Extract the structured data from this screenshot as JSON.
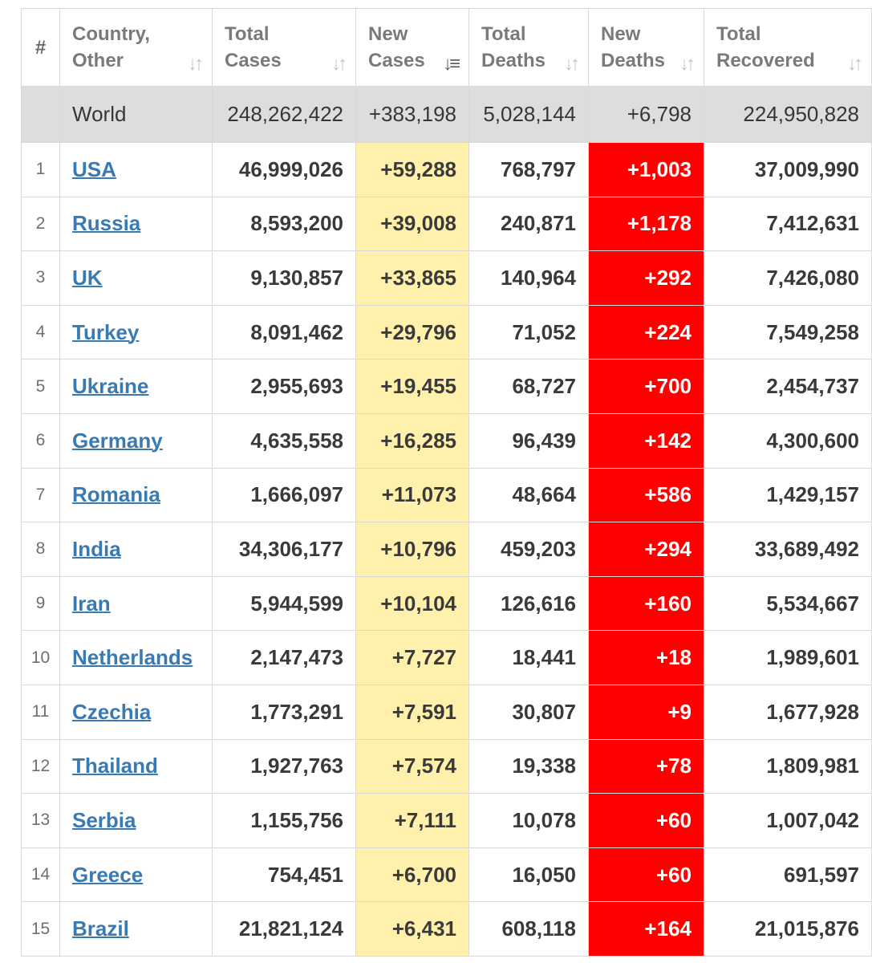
{
  "headers": {
    "num": "#",
    "country": [
      "Country,",
      "Other"
    ],
    "total_cases": [
      "Total",
      "Cases"
    ],
    "new_cases": [
      "New",
      "Cases"
    ],
    "total_deaths": [
      "Total",
      "Deaths"
    ],
    "new_deaths": [
      "New",
      "Deaths"
    ],
    "total_recovered": [
      "Total",
      "Recovered"
    ]
  },
  "world": {
    "name": "World",
    "total_cases": "248,262,422",
    "new_cases": "+383,198",
    "total_deaths": "5,028,144",
    "new_deaths": "+6,798",
    "total_recovered": "224,950,828"
  },
  "rows": [
    {
      "num": "1",
      "country": "USA",
      "total_cases": "46,999,026",
      "new_cases": "+59,288",
      "total_deaths": "768,797",
      "new_deaths": "+1,003",
      "total_recovered": "37,009,990"
    },
    {
      "num": "2",
      "country": "Russia",
      "total_cases": "8,593,200",
      "new_cases": "+39,008",
      "total_deaths": "240,871",
      "new_deaths": "+1,178",
      "total_recovered": "7,412,631"
    },
    {
      "num": "3",
      "country": "UK",
      "total_cases": "9,130,857",
      "new_cases": "+33,865",
      "total_deaths": "140,964",
      "new_deaths": "+292",
      "total_recovered": "7,426,080"
    },
    {
      "num": "4",
      "country": "Turkey",
      "total_cases": "8,091,462",
      "new_cases": "+29,796",
      "total_deaths": "71,052",
      "new_deaths": "+224",
      "total_recovered": "7,549,258"
    },
    {
      "num": "5",
      "country": "Ukraine",
      "total_cases": "2,955,693",
      "new_cases": "+19,455",
      "total_deaths": "68,727",
      "new_deaths": "+700",
      "total_recovered": "2,454,737"
    },
    {
      "num": "6",
      "country": "Germany",
      "total_cases": "4,635,558",
      "new_cases": "+16,285",
      "total_deaths": "96,439",
      "new_deaths": "+142",
      "total_recovered": "4,300,600"
    },
    {
      "num": "7",
      "country": "Romania",
      "total_cases": "1,666,097",
      "new_cases": "+11,073",
      "total_deaths": "48,664",
      "new_deaths": "+586",
      "total_recovered": "1,429,157"
    },
    {
      "num": "8",
      "country": "India",
      "total_cases": "34,306,177",
      "new_cases": "+10,796",
      "total_deaths": "459,203",
      "new_deaths": "+294",
      "total_recovered": "33,689,492"
    },
    {
      "num": "9",
      "country": "Iran",
      "total_cases": "5,944,599",
      "new_cases": "+10,104",
      "total_deaths": "126,616",
      "new_deaths": "+160",
      "total_recovered": "5,534,667"
    },
    {
      "num": "10",
      "country": "Netherlands",
      "total_cases": "2,147,473",
      "new_cases": "+7,727",
      "total_deaths": "18,441",
      "new_deaths": "+18",
      "total_recovered": "1,989,601"
    },
    {
      "num": "11",
      "country": "Czechia",
      "total_cases": "1,773,291",
      "new_cases": "+7,591",
      "total_deaths": "30,807",
      "new_deaths": "+9",
      "total_recovered": "1,677,928"
    },
    {
      "num": "12",
      "country": "Thailand",
      "total_cases": "1,927,763",
      "new_cases": "+7,574",
      "total_deaths": "19,338",
      "new_deaths": "+78",
      "total_recovered": "1,809,981"
    },
    {
      "num": "13",
      "country": "Serbia",
      "total_cases": "1,155,756",
      "new_cases": "+7,111",
      "total_deaths": "10,078",
      "new_deaths": "+60",
      "total_recovered": "1,007,042"
    },
    {
      "num": "14",
      "country": "Greece",
      "total_cases": "754,451",
      "new_cases": "+6,700",
      "total_deaths": "16,050",
      "new_deaths": "+60",
      "total_recovered": "691,597"
    },
    {
      "num": "15",
      "country": "Brazil",
      "total_cases": "21,821,124",
      "new_cases": "+6,431",
      "total_deaths": "608,118",
      "new_deaths": "+164",
      "total_recovered": "21,015,876"
    }
  ],
  "icons": {
    "sort_neutral": "sort-neutral-icon",
    "sort_desc": "sort-descending-icon"
  },
  "colors": {
    "new_cases_bg": "#fff0ab",
    "new_deaths_bg": "#ff0000",
    "world_row_bg": "#dddddd",
    "link": "#3a7ab2"
  }
}
